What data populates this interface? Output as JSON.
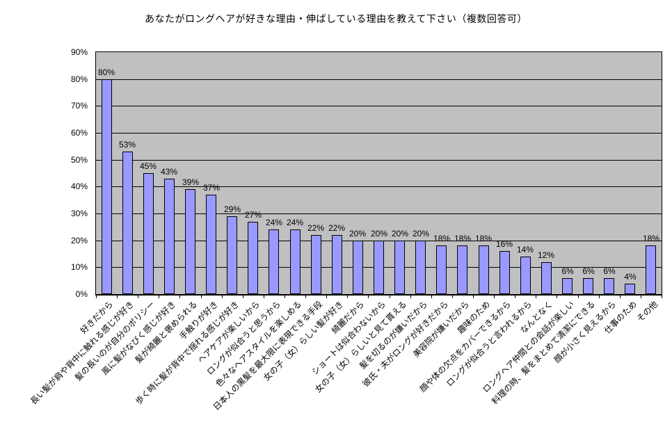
{
  "chart_data": {
    "type": "bar",
    "title": "あなたがロングヘアが好きな理由・伸ばしている理由を教えて下さい（複数回答可）",
    "categories": [
      "好きだから",
      "長い髪が肩や背中に触れる感じが好き",
      "髪の長いのが自分のポリシー",
      "風に髪がなびく感じが好き",
      "髪が綺麗と褒められる",
      "手触りが好き",
      "歩く時に髪が背中で揺れる感じが好き",
      "ヘアケアが楽しいから",
      "ロングが似合うと思うから",
      "色々なヘアスタイルを楽しめる",
      "日本人の黒髪を最大限に表現できる手段",
      "女の子（女）らしい髪が好き",
      "綺麗だから",
      "ショートは似合わないから",
      "女の子（女）らしいと見て貰える",
      "髪を切るのが嫌いだから",
      "彼氏・夫がロングが好きだから",
      "美容院が嫌いだから",
      "趣味のため",
      "顔や体の欠点をカバーできるから",
      "ロングが似合うと言われるから",
      "なんとなく",
      "ロングヘア仲間との会話が楽しい",
      "料理の時、髪をまとめて清潔にできる",
      "顔が小さく見えるから",
      "仕事のため",
      "その他"
    ],
    "values": [
      80,
      53,
      45,
      43,
      39,
      37,
      29,
      27,
      24,
      24,
      22,
      22,
      20,
      20,
      20,
      20,
      18,
      18,
      18,
      16,
      14,
      12,
      6,
      6,
      6,
      4,
      18
    ],
    "value_suffix": "%",
    "xlabel": "",
    "ylabel": "",
    "ylim": [
      0,
      90
    ],
    "ytick_step": 10,
    "ytick_labels": [
      "0%",
      "10%",
      "20%",
      "30%",
      "40%",
      "50%",
      "60%",
      "70%",
      "80%",
      "90%"
    ],
    "grid": true,
    "legend": "none",
    "data_labels": true,
    "colors": {
      "bar_fill": "#9999FF",
      "bar_border": "#000000",
      "plot_background": "#C0C0C0",
      "page_background": "#FFFFFF",
      "gridline": "#000000",
      "text": "#000000"
    }
  }
}
